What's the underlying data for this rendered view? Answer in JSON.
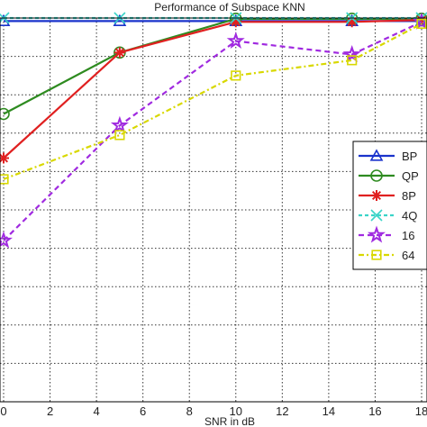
{
  "chart_data": {
    "type": "line",
    "title": "Performance of Subspace KNN",
    "xlabel": "SNR in dB",
    "ylabel": "",
    "x_ticks": [
      0,
      2,
      4,
      6,
      8,
      10,
      12,
      14,
      16,
      18
    ],
    "xlim": [
      0,
      18
    ],
    "ylim": [
      0,
      100
    ],
    "y_gridlines": [
      0,
      10,
      20,
      30,
      40,
      50,
      60,
      70,
      80,
      90,
      100
    ],
    "grid": true,
    "legend_position": "right",
    "series": [
      {
        "name": "BP",
        "color": "#1a33cc",
        "marker": "triangle",
        "dash": "",
        "x": [
          0,
          5,
          10,
          15,
          18
        ],
        "y": [
          99.2,
          99.2,
          99.2,
          99.2,
          99.2
        ]
      },
      {
        "name": "QP",
        "color": "#2e8b20",
        "marker": "circle",
        "dash": "",
        "x": [
          0,
          5,
          10,
          15,
          18
        ],
        "y": [
          75,
          91,
          99.8,
          99.8,
          99.8
        ]
      },
      {
        "name": "8P",
        "color": "#e02020",
        "marker": "asterisk",
        "dash": "",
        "x": [
          0,
          5,
          10,
          15,
          18
        ],
        "y": [
          63.5,
          91,
          99,
          99,
          99.5
        ]
      },
      {
        "name": "4Q",
        "color": "#3ad4c8",
        "marker": "x",
        "dash": "4 3",
        "x": [
          0,
          5,
          10,
          15,
          18
        ],
        "y": [
          100,
          100,
          100,
          100,
          100
        ]
      },
      {
        "name": "16",
        "color": "#a02ae0",
        "marker": "star",
        "dash": "6 4",
        "x": [
          0,
          5,
          10,
          15,
          18
        ],
        "y": [
          42,
          72,
          94,
          90.5,
          99
        ]
      },
      {
        "name": "64",
        "color": "#d8d800",
        "marker": "square",
        "dash": "6 3 2 3",
        "x": [
          0,
          5,
          10,
          15,
          18
        ],
        "y": [
          58,
          69.5,
          85,
          89,
          98.5
        ]
      }
    ]
  }
}
